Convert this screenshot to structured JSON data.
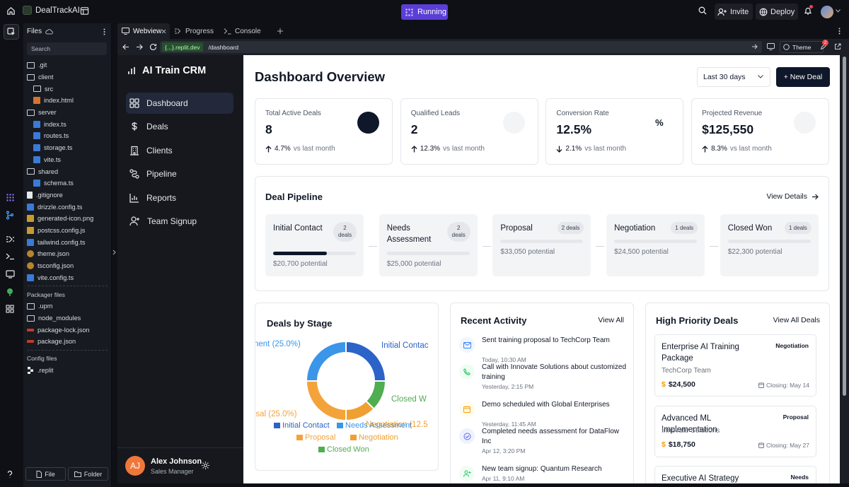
{
  "topbar": {
    "repo_name": "DealTrackAI",
    "run_label": "Running",
    "invite_label": "Invite",
    "deploy_label": "Deploy"
  },
  "files": {
    "title": "Files",
    "search_placeholder": "Search",
    "items": [
      {
        "name": ".git",
        "type": "folder",
        "indent": 0
      },
      {
        "name": "client",
        "type": "folder",
        "indent": 0
      },
      {
        "name": "src",
        "type": "folder",
        "indent": 1
      },
      {
        "name": "index.html",
        "type": "html",
        "indent": 1
      },
      {
        "name": "server",
        "type": "folder",
        "indent": 0
      },
      {
        "name": "index.ts",
        "type": "ts",
        "indent": 1
      },
      {
        "name": "routes.ts",
        "type": "ts",
        "indent": 1
      },
      {
        "name": "storage.ts",
        "type": "ts",
        "indent": 1
      },
      {
        "name": "vite.ts",
        "type": "ts",
        "indent": 1
      },
      {
        "name": "shared",
        "type": "folder",
        "indent": 0
      },
      {
        "name": "schema.ts",
        "type": "ts",
        "indent": 1
      },
      {
        "name": ".gitignore",
        "type": "git",
        "indent": 0
      },
      {
        "name": "drizzle.config.ts",
        "type": "ts",
        "indent": 0
      },
      {
        "name": "generated-icon.png",
        "type": "img",
        "indent": 0
      },
      {
        "name": "postcss.config.js",
        "type": "css",
        "indent": 0
      },
      {
        "name": "tailwind.config.ts",
        "type": "ts",
        "indent": 0
      },
      {
        "name": "theme.json",
        "type": "json",
        "indent": 0
      },
      {
        "name": "tsconfig.json",
        "type": "json",
        "indent": 0
      },
      {
        "name": "vite.config.ts",
        "type": "ts",
        "indent": 0
      }
    ],
    "packager_title": "Packager files",
    "packager_items": [
      {
        "name": ".upm",
        "type": "folder"
      },
      {
        "name": "node_modules",
        "type": "folder"
      },
      {
        "name": "package-lock.json",
        "type": "pkg"
      },
      {
        "name": "package.json",
        "type": "pkg"
      }
    ],
    "config_title": "Config files",
    "config_items": [
      {
        "name": ".replit",
        "type": "replit"
      }
    ],
    "file_button": "File",
    "folder_button": "Folder"
  },
  "tabs": [
    {
      "label": "Webview",
      "active": true
    },
    {
      "label": "Progress",
      "active": false
    },
    {
      "label": "Console",
      "active": false
    }
  ],
  "urlbar": {
    "host": "{...}.replit.dev",
    "path": "/dashboard",
    "theme_label": "Theme",
    "badge_count": "2"
  },
  "app": {
    "brand": "AI Train CRM",
    "nav": [
      {
        "label": "Dashboard",
        "icon": "grid-icon",
        "active": true
      },
      {
        "label": "Deals",
        "icon": "dollar-icon",
        "active": false
      },
      {
        "label": "Clients",
        "icon": "building-icon",
        "active": false
      },
      {
        "label": "Pipeline",
        "icon": "pipeline-icon",
        "active": false
      },
      {
        "label": "Reports",
        "icon": "chart-icon",
        "active": false
      },
      {
        "label": "Team Signup",
        "icon": "user-plus-icon",
        "active": false
      }
    ],
    "user": {
      "initials": "AJ",
      "name": "Alex Johnson",
      "role": "Sales Manager"
    }
  },
  "dashboard": {
    "title": "Dashboard Overview",
    "range": "Last 30 days",
    "new_deal": "+ New Deal",
    "stats": [
      {
        "label": "Total Active Deals",
        "value": "8",
        "change": "4.7%",
        "suffix": "vs last month",
        "direction": "up",
        "circle_color": "#0f172a",
        "symbol": ""
      },
      {
        "label": "Qualified Leads",
        "value": "2",
        "change": "12.3%",
        "suffix": "vs last month",
        "direction": "up",
        "circle_color": "#f3f4f6",
        "symbol": ""
      },
      {
        "label": "Conversion Rate",
        "value": "12.5%",
        "change": "2.1%",
        "suffix": "vs last month",
        "direction": "down",
        "circle_color": "#ffffff",
        "symbol": "%"
      },
      {
        "label": "Projected Revenue",
        "value": "$125,550",
        "change": "8.3%",
        "suffix": "vs last month",
        "direction": "up",
        "circle_color": "#f3f4f6",
        "symbol": ""
      }
    ],
    "pipeline": {
      "title": "Deal Pipeline",
      "link": "View Details",
      "stages": [
        {
          "name": "Initial Contact",
          "count": "2 deals",
          "potential": "$20,700 potential",
          "fill": 0.65
        },
        {
          "name": "Needs Assessment",
          "count": "2 deals",
          "potential": "$25,000 potential",
          "fill": 0
        },
        {
          "name": "Proposal",
          "count": "2 deals",
          "potential": "$33,050 potential",
          "fill": 0
        },
        {
          "name": "Negotiation",
          "count": "1 deals",
          "potential": "$24,500 potential",
          "fill": 0
        },
        {
          "name": "Closed Won",
          "count": "1 deals",
          "potential": "$22,300 potential",
          "fill": 0
        }
      ]
    },
    "deals_by_stage": {
      "title": "Deals by Stage",
      "outer_labels": [
        "Initial Contac",
        "nent (25.0%)",
        "Closed W",
        "osal (25.0%)",
        "Negotiation (12.5"
      ],
      "legend": [
        "Initial Contact",
        "Needs Assessment",
        "Proposal",
        "Negotiation",
        "Closed Won"
      ]
    },
    "activity": {
      "title": "Recent Activity",
      "link": "View All",
      "items": [
        {
          "pre": "Sent training proposal to ",
          "bold": "TechCorp Team",
          "post": "",
          "time": "Today, 10:30 AM",
          "icon": "mail-icon",
          "color": "#3b82f6",
          "bg": "#eff6ff"
        },
        {
          "pre": "Call with ",
          "bold": "Innovate Solutions",
          "post": " about customized training",
          "time": "Yesterday, 2:15 PM",
          "icon": "phone-icon",
          "color": "#22c55e",
          "bg": "#f0fdf4"
        },
        {
          "pre": "Demo scheduled with ",
          "bold": "Global Enterprises",
          "post": "",
          "time": "Yesterday, 11:45 AM",
          "icon": "calendar-icon",
          "color": "#f59e0b",
          "bg": "#fffbeb"
        },
        {
          "pre": "Completed needs assessment for ",
          "bold": "DataFlow Inc",
          "post": "",
          "time": "Apr 12, 3:20 PM",
          "icon": "check-icon",
          "color": "#6366f1",
          "bg": "#eef2ff"
        },
        {
          "pre": "New team signup: ",
          "bold": "Quantum Research",
          "post": "",
          "time": "Apr 11, 9:10 AM",
          "icon": "user-plus-icon",
          "color": "#22c55e",
          "bg": "#f0fdf4"
        }
      ]
    },
    "priority": {
      "title": "High Priority Deals",
      "link": "View All Deals",
      "deals": [
        {
          "title": "Enterprise AI Training Package",
          "stage": "Negotiation",
          "company": "TechCorp Team",
          "amount": "$24,500",
          "closing": "Closing: May 14"
        },
        {
          "title": "Advanced ML Implementation",
          "stage": "Proposal",
          "company": "Innovate Solutions",
          "amount": "$18,750",
          "closing": "Closing: May 27"
        },
        {
          "title": "Executive AI Strategy",
          "stage": "Needs",
          "company": "",
          "amount": "",
          "closing": ""
        }
      ]
    }
  },
  "chart_data": {
    "type": "pie",
    "title": "Deals by Stage",
    "categories": [
      "Initial Contact",
      "Needs Assessment",
      "Proposal",
      "Negotiation",
      "Closed Won"
    ],
    "values": [
      25.0,
      25.0,
      25.0,
      12.5,
      12.5
    ],
    "colors": [
      "#2b63c8",
      "#3b95e8",
      "#f4a33a",
      "#f0a030",
      "#4fae50"
    ],
    "legend_position": "bottom"
  }
}
